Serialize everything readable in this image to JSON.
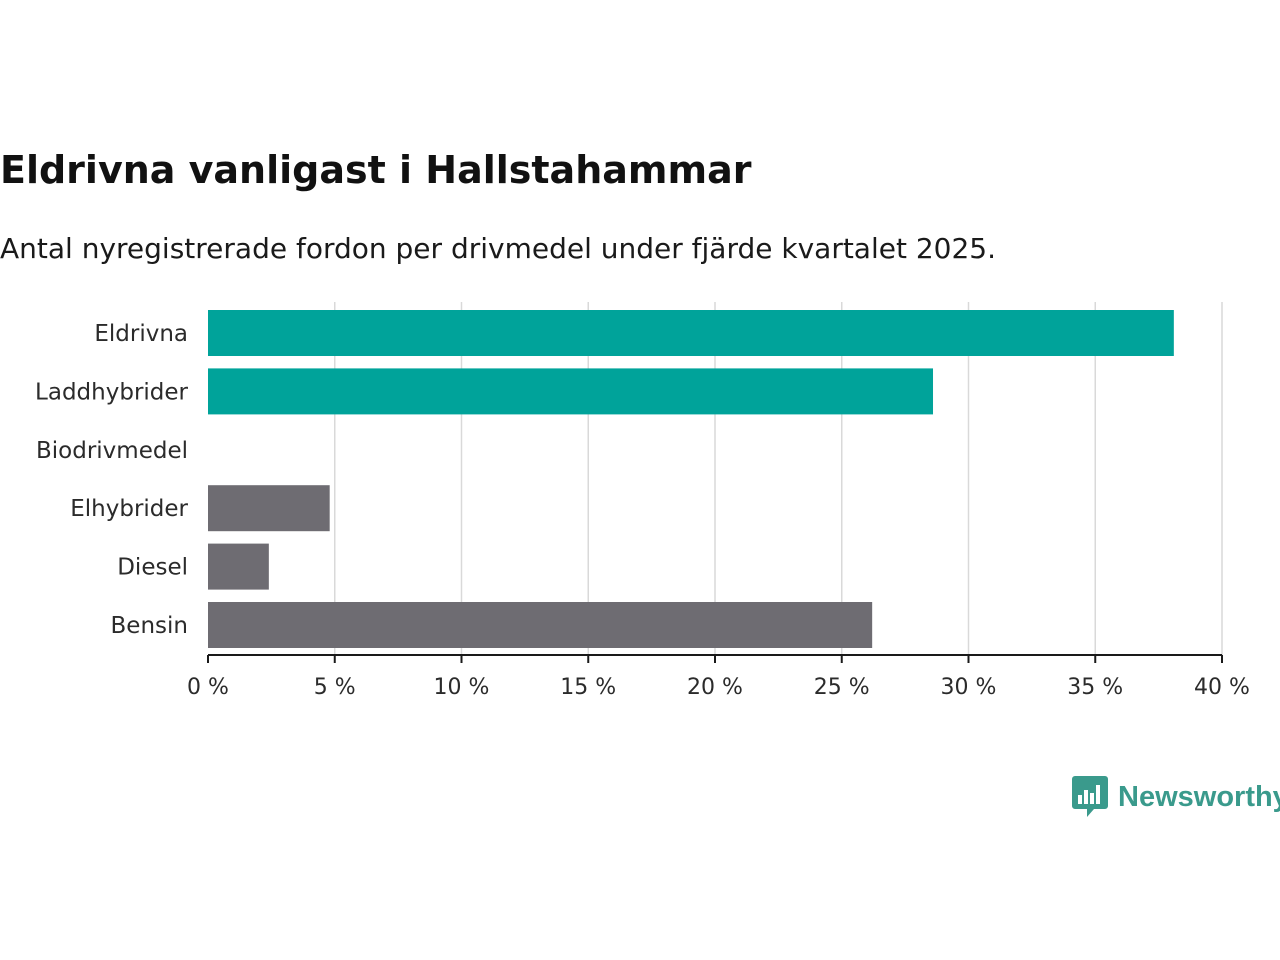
{
  "colors": {
    "highlight": "#00a39a",
    "neutral": "#6e6c72",
    "grid": "#d9d9d9",
    "axis": "#1a1a1a",
    "brand": "#3a9a8c"
  },
  "brand": {
    "name": "Newsworthy",
    "icon": "newsworthy-chart-icon"
  },
  "chart_data": {
    "type": "bar",
    "orientation": "horizontal",
    "title": "Eldrivna vanligast i Hallstahammar",
    "subtitle": "Antal nyregistrerade fordon per drivmedel under fjärde kvartalet 2025.",
    "xlabel": "",
    "ylabel": "",
    "xlim": [
      0,
      40
    ],
    "x_ticks": [
      0,
      5,
      10,
      15,
      20,
      25,
      30,
      35,
      40
    ],
    "x_tick_labels": [
      "0 %",
      "5 %",
      "10 %",
      "15 %",
      "20 %",
      "25 %",
      "30 %",
      "35 %",
      "40 %"
    ],
    "grid": true,
    "legend": "none",
    "categories": [
      "Eldrivna",
      "Laddhybrider",
      "Biodrivmedel",
      "Elhybrider",
      "Diesel",
      "Bensin"
    ],
    "values": [
      38.1,
      28.6,
      0,
      4.8,
      2.4,
      26.2
    ],
    "highlight": [
      true,
      true,
      false,
      false,
      false,
      false
    ]
  }
}
